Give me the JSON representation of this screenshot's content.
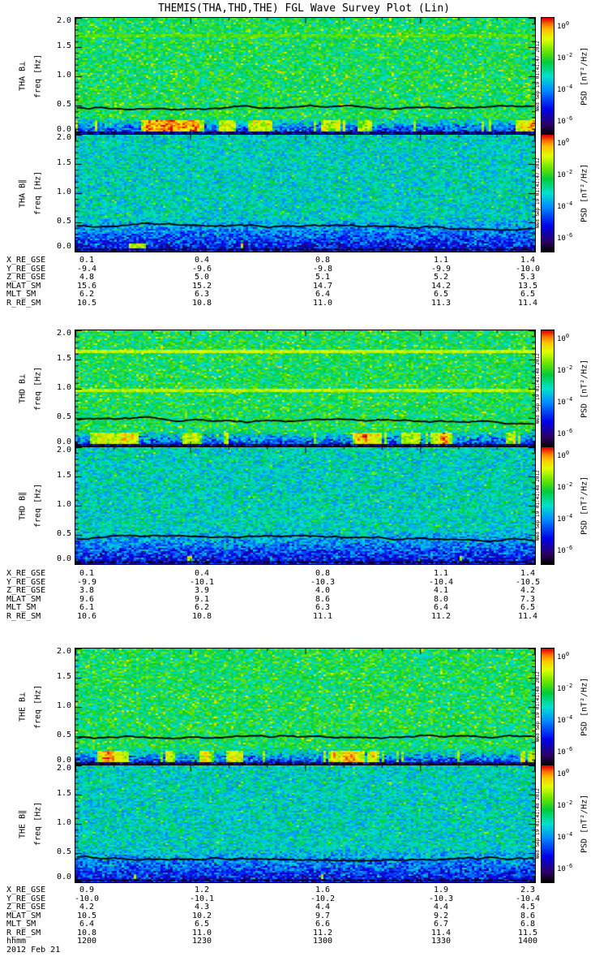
{
  "title": "THEMIS(THA,THD,THE) FGL Wave Survey Plot (Lin)",
  "date_label": "2012 Feb 21",
  "time_axis": {
    "label": "hhmm",
    "ticks": [
      "1200",
      "1230",
      "1300",
      "1330",
      "1400"
    ]
  },
  "freq_axis": {
    "label": "freq [Hz]",
    "ticks": [
      "2.0",
      "1.5",
      "1.0",
      "0.5",
      "0.0"
    ]
  },
  "colorbar": {
    "label": "PSD [nT²/Hz]",
    "ticks": [
      {
        "base": "10",
        "exp": "0"
      },
      {
        "base": "10",
        "exp": "-2"
      },
      {
        "base": "10",
        "exp": "-4"
      },
      {
        "base": "10",
        "exp": "-6"
      }
    ]
  },
  "panels": [
    {
      "probe": "THA",
      "spectrograms": [
        {
          "ylabel": "THA B⊥",
          "timestamp": "Wed Sep 19 01:41:47 2012"
        },
        {
          "ylabel": "THA B∥",
          "timestamp": "Wed Sep 19 01:41:47 2012"
        }
      ],
      "ephemeris": [
        {
          "label": "X_RE_GSE",
          "values": [
            "0.1",
            "0.4",
            "0.8",
            "1.1",
            "1.4"
          ]
        },
        {
          "label": "Y_RE_GSE",
          "values": [
            "-9.4",
            "-9.6",
            "-9.8",
            "-9.9",
            "-10.0"
          ]
        },
        {
          "label": "Z_RE_GSE",
          "values": [
            "4.8",
            "5.0",
            "5.1",
            "5.2",
            "5.3"
          ]
        },
        {
          "label": "MLAT_SM",
          "values": [
            "15.6",
            "15.2",
            "14.7",
            "14.2",
            "13.5"
          ]
        },
        {
          "label": "MLT_SM",
          "values": [
            "6.2",
            "6.3",
            "6.4",
            "6.5",
            "6.5"
          ]
        },
        {
          "label": "R_RE_SM",
          "values": [
            "10.5",
            "10.8",
            "11.0",
            "11.3",
            "11.4"
          ]
        }
      ]
    },
    {
      "probe": "THD",
      "spectrograms": [
        {
          "ylabel": "THD B⊥",
          "timestamp": "Wed Sep 19 01:41:48 2012"
        },
        {
          "ylabel": "THD B∥",
          "timestamp": "Wed Sep 19 01:41:48 2012"
        }
      ],
      "ephemeris": [
        {
          "label": "X_RE_GSE",
          "values": [
            "0.1",
            "0.4",
            "0.8",
            "1.1",
            "1.4"
          ]
        },
        {
          "label": "Y_RE_GSE",
          "values": [
            "-9.9",
            "-10.1",
            "-10.3",
            "-10.4",
            "-10.5"
          ]
        },
        {
          "label": "Z_RE_GSE",
          "values": [
            "3.8",
            "3.9",
            "4.0",
            "4.1",
            "4.2"
          ]
        },
        {
          "label": "MLAT_SM",
          "values": [
            "9.6",
            "9.1",
            "8.6",
            "8.0",
            "7.3"
          ]
        },
        {
          "label": "MLT_SM",
          "values": [
            "6.1",
            "6.2",
            "6.3",
            "6.4",
            "6.5"
          ]
        },
        {
          "label": "R_RE_SM",
          "values": [
            "10.6",
            "10.8",
            "11.1",
            "11.2",
            "11.4"
          ]
        }
      ]
    },
    {
      "probe": "THE",
      "spectrograms": [
        {
          "ylabel": "THE B⊥",
          "timestamp": "Wed Sep 19 01:41:48 2012"
        },
        {
          "ylabel": "THE B∥",
          "timestamp": "Wed Sep 19 01:41:48 2012"
        }
      ],
      "ephemeris": [
        {
          "label": "X_RE_GSE",
          "values": [
            "0.9",
            "1.2",
            "1.6",
            "1.9",
            "2.3"
          ]
        },
        {
          "label": "Y_RE_GSE",
          "values": [
            "-10.0",
            "-10.1",
            "-10.2",
            "-10.3",
            "-10.4"
          ]
        },
        {
          "label": "Z_RE_GSE",
          "values": [
            "4.2",
            "4.3",
            "4.4",
            "4.4",
            "4.5"
          ]
        },
        {
          "label": "MLAT_SM",
          "values": [
            "10.5",
            "10.2",
            "9.7",
            "9.2",
            "8.6"
          ]
        },
        {
          "label": "MLT_SM",
          "values": [
            "6.4",
            "6.5",
            "6.6",
            "6.7",
            "6.8"
          ]
        },
        {
          "label": "R_RE_SM",
          "values": [
            "10.8",
            "11.0",
            "11.2",
            "11.4",
            "11.5"
          ]
        }
      ]
    }
  ],
  "chart_data": {
    "type": "heatmap",
    "subtype": "wave-survey-spectrogram-grid",
    "title": "THEMIS(THA,THD,THE) FGL Wave Survey Plot (Lin)",
    "x": {
      "label": "hhmm",
      "date": "2012 Feb 21",
      "start": "1200",
      "end": "1400",
      "ticks": [
        "1200",
        "1230",
        "1300",
        "1330",
        "1400"
      ]
    },
    "y": {
      "label": "freq [Hz]",
      "min": 0.0,
      "max": 2.0,
      "ticks": [
        0.0,
        0.5,
        1.0,
        1.5,
        2.0
      ]
    },
    "z": {
      "label": "PSD [nT²/Hz]",
      "scale": "log",
      "colorbar_ticks": [
        "1e0",
        "1e-2",
        "1e-4",
        "1e-6"
      ],
      "colormap": "rainbow (black-blue-cyan-green-yellow-red)"
    },
    "spectrograms": [
      {
        "probe": "THA",
        "component": "B⊥",
        "polarization": "perpendicular",
        "overlay_trace_hz": 0.47,
        "artifact_lines": [
          {
            "freq_hz": 1.7,
            "strength": 0.03
          }
        ],
        "features": [
          "broadband green noise ~1e-3",
          "dark-blue low-power band below 0.3 Hz",
          "intermittent yellow-red bursts 0.1-0.25 Hz",
          "black frequency trace near 0.45 Hz",
          "dash-dot trace near 0 Hz"
        ]
      },
      {
        "probe": "THA",
        "component": "B∥",
        "polarization": "parallel",
        "overlay_trace_hz": 0.44,
        "artifact_lines": [],
        "features": [
          "weaker cyan-blue background",
          "dark band below 0.5 Hz",
          "sparse yellow bursts below 0.1 Hz",
          "black frequency trace near 0.45 Hz",
          "dash-dot trace near 0 Hz"
        ]
      },
      {
        "probe": "THD",
        "component": "B⊥",
        "polarization": "perpendicular",
        "overlay_trace_hz": 0.47,
        "artifact_lines": [
          {
            "freq_hz": 1.65,
            "strength": 0.14
          },
          {
            "freq_hz": 0.97,
            "strength": 0.12
          }
        ],
        "features": [
          "broadband green noise",
          "narrowband instrumental lines near 0.97 and 1.65 Hz",
          "dark-blue low-power band below 0.3 Hz",
          "yellow-red bursts 0.1-0.25 Hz",
          "black frequency trace near 0.45 Hz"
        ]
      },
      {
        "probe": "THD",
        "component": "B∥",
        "polarization": "parallel",
        "overlay_trace_hz": 0.44,
        "artifact_lines": [],
        "features": [
          "cyan-blue background",
          "dark band below 0.5 Hz",
          "black frequency trace near 0.45 Hz",
          "dash-dot trace near 0 Hz"
        ]
      },
      {
        "probe": "THE",
        "component": "B⊥",
        "polarization": "perpendicular",
        "overlay_trace_hz": 0.47,
        "artifact_lines": [],
        "features": [
          "broadband green noise",
          "dark-blue low-power band below 0.3 Hz",
          "yellow-red bursts 0.1-0.25 Hz",
          "black frequency trace near 0.45 Hz"
        ]
      },
      {
        "probe": "THE",
        "component": "B∥",
        "polarization": "parallel",
        "overlay_trace_hz": 0.44,
        "artifact_lines": [],
        "features": [
          "cyan-blue background",
          "dark band below 0.5 Hz",
          "sparse yellow bursts near 0 Hz",
          "black frequency trace near 0.45 Hz"
        ]
      }
    ]
  }
}
